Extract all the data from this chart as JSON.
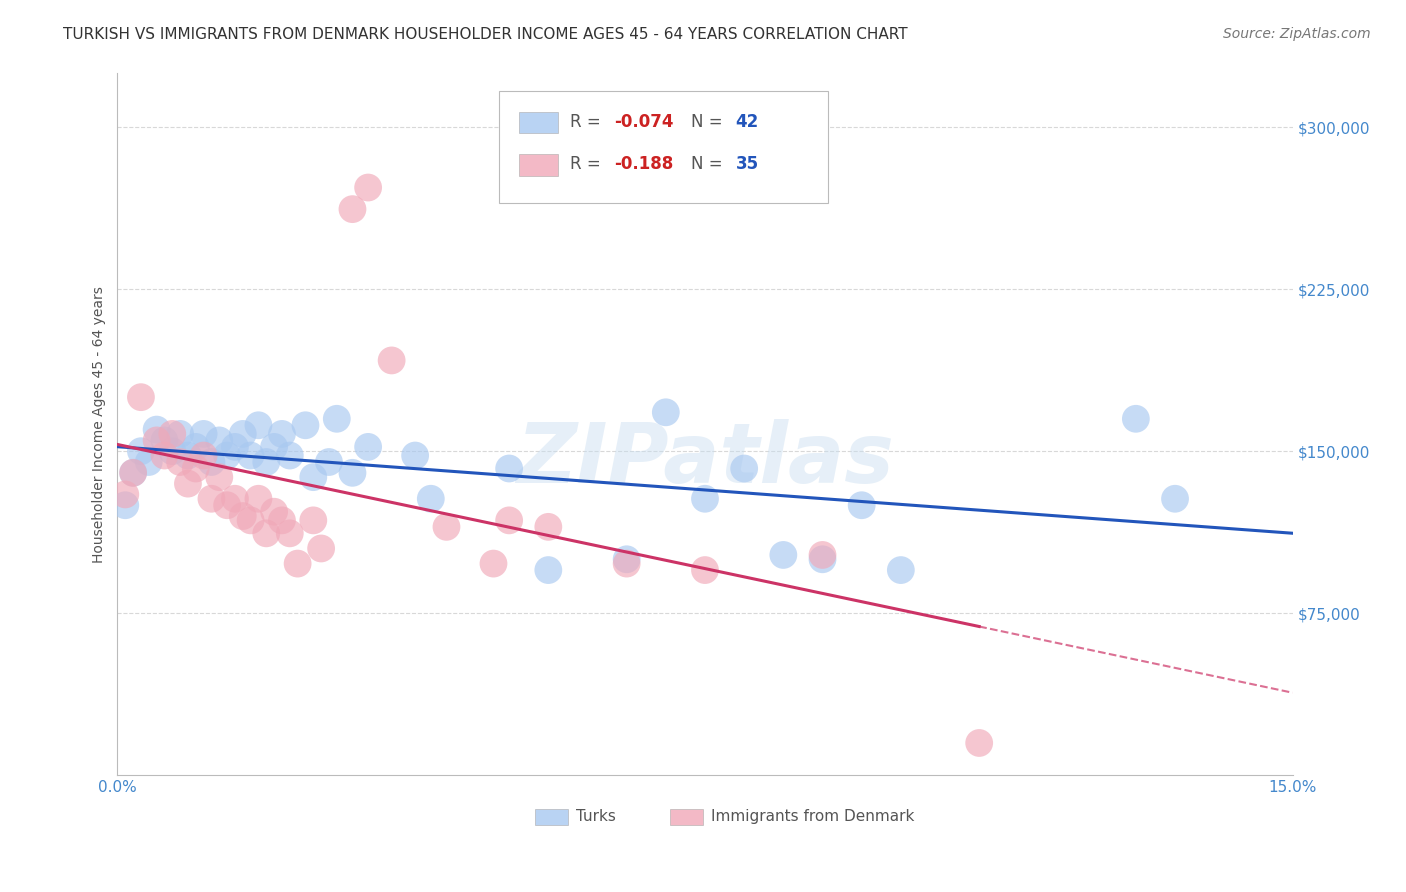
{
  "title": "TURKISH VS IMMIGRANTS FROM DENMARK HOUSEHOLDER INCOME AGES 45 - 64 YEARS CORRELATION CHART",
  "source": "Source: ZipAtlas.com",
  "ylabel": "Householder Income Ages 45 - 64 years",
  "xlim": [
    0.0,
    0.15
  ],
  "ylim": [
    0,
    325000
  ],
  "yticks": [
    0,
    75000,
    150000,
    225000,
    300000
  ],
  "ytick_labels": [
    "",
    "$75,000",
    "$150,000",
    "$225,000",
    "$300,000"
  ],
  "xticks": [
    0.0,
    0.05,
    0.1,
    0.15
  ],
  "xtick_labels": [
    "0.0%",
    "",
    "",
    "15.0%"
  ],
  "background_color": "#ffffff",
  "grid_color": "#d8d8d8",
  "turks_color": "#a8c8f0",
  "denmark_color": "#f0a8b8",
  "watermark": "ZIPatlas",
  "title_fontsize": 11,
  "label_fontsize": 10,
  "tick_fontsize": 11,
  "legend_fontsize": 12,
  "source_fontsize": 10,
  "turks_x": [
    0.001,
    0.002,
    0.003,
    0.004,
    0.005,
    0.006,
    0.007,
    0.008,
    0.009,
    0.01,
    0.011,
    0.012,
    0.013,
    0.014,
    0.015,
    0.016,
    0.017,
    0.018,
    0.019,
    0.02,
    0.021,
    0.022,
    0.024,
    0.025,
    0.027,
    0.028,
    0.03,
    0.032,
    0.038,
    0.04,
    0.05,
    0.055,
    0.065,
    0.07,
    0.075,
    0.08,
    0.085,
    0.09,
    0.095,
    0.1,
    0.13,
    0.135
  ],
  "turks_y": [
    125000,
    140000,
    150000,
    145000,
    160000,
    155000,
    150000,
    158000,
    148000,
    152000,
    158000,
    145000,
    155000,
    148000,
    152000,
    158000,
    148000,
    162000,
    145000,
    152000,
    158000,
    148000,
    162000,
    138000,
    145000,
    165000,
    140000,
    152000,
    148000,
    128000,
    142000,
    95000,
    100000,
    168000,
    128000,
    142000,
    102000,
    100000,
    125000,
    95000,
    165000,
    128000
  ],
  "denmark_x": [
    0.001,
    0.002,
    0.003,
    0.005,
    0.006,
    0.007,
    0.008,
    0.009,
    0.01,
    0.011,
    0.012,
    0.013,
    0.014,
    0.015,
    0.016,
    0.017,
    0.018,
    0.019,
    0.02,
    0.021,
    0.022,
    0.023,
    0.025,
    0.026,
    0.03,
    0.032,
    0.035,
    0.042,
    0.048,
    0.05,
    0.055,
    0.065,
    0.075,
    0.09,
    0.11
  ],
  "denmark_y": [
    130000,
    140000,
    175000,
    155000,
    148000,
    158000,
    145000,
    135000,
    142000,
    148000,
    128000,
    138000,
    125000,
    128000,
    120000,
    118000,
    128000,
    112000,
    122000,
    118000,
    112000,
    98000,
    118000,
    105000,
    262000,
    272000,
    192000,
    115000,
    98000,
    118000,
    115000,
    98000,
    95000,
    102000,
    15000
  ]
}
